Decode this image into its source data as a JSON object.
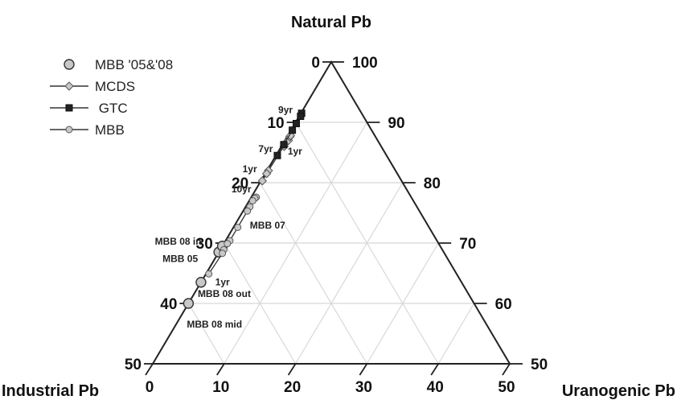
{
  "chart_data": {
    "type": "scatter",
    "subtype": "ternary",
    "vertices": {
      "top": "Natural Pb",
      "left": "Industrial Pb",
      "right": "Uranogenic Pb"
    },
    "ticks": {
      "left_edge": [
        "0",
        "10",
        "20",
        "30",
        "40",
        "50"
      ],
      "right_edge": [
        "100",
        "90",
        "80",
        "70",
        "60",
        "50"
      ],
      "bottom_edge": [
        "0",
        "10",
        "20",
        "30",
        "40",
        "50"
      ]
    },
    "axis_ranges": {
      "industrial": [
        0,
        50
      ],
      "natural": [
        50,
        100
      ],
      "uranogenic": [
        0,
        50
      ]
    },
    "grid": true,
    "legend_position": "top-left",
    "legend": [
      {
        "label": "MBB '05&'08",
        "marker": "circle-large",
        "line": false,
        "color": "#c8c8c8"
      },
      {
        "label": "MCDS",
        "marker": "diamond",
        "line": true,
        "color": "#c8c8c8"
      },
      {
        "label": "GTC",
        "marker": "square",
        "line": true,
        "color": "#222222"
      },
      {
        "label": "MBB",
        "marker": "circle",
        "line": true,
        "color": "#c8c8c8"
      }
    ],
    "series": [
      {
        "name": "MBB '05&'08",
        "marker": "circle-large",
        "color": "#c8c8c8",
        "points": [
          {
            "industrial": 31.5,
            "natural": 68.5,
            "uranogenic": 0.0
          },
          {
            "industrial": 30.5,
            "natural": 69.5,
            "uranogenic": 0.0
          },
          {
            "industrial": 36.5,
            "natural": 63.5,
            "uranogenic": 0.0
          },
          {
            "industrial": 40.0,
            "natural": 60.0,
            "uranogenic": 0.0
          }
        ]
      },
      {
        "name": "MCDS",
        "marker": "diamond",
        "color": "#c8c8c8",
        "points": [
          {
            "industrial": 13.6,
            "natural": 86.0,
            "uranogenic": 0.4
          },
          {
            "industrial": 13.2,
            "natural": 86.5,
            "uranogenic": 0.3
          },
          {
            "industrial": 12.5,
            "natural": 87.0,
            "uranogenic": 0.5
          },
          {
            "industrial": 12.0,
            "natural": 87.6,
            "uranogenic": 0.4
          },
          {
            "industrial": 11.8,
            "natural": 87.8,
            "uranogenic": 0.4
          },
          {
            "industrial": 17.8,
            "natural": 82.0,
            "uranogenic": 0.2
          },
          {
            "industrial": 18.3,
            "natural": 81.5,
            "uranogenic": 0.2
          },
          {
            "industrial": 19.5,
            "natural": 80.3,
            "uranogenic": 0.2
          }
        ]
      },
      {
        "name": "GTC",
        "marker": "square",
        "color": "#222222",
        "points": [
          {
            "industrial": 8.4,
            "natural": 91.5,
            "uranogenic": 0.1
          },
          {
            "industrial": 8.8,
            "natural": 91.0,
            "uranogenic": 0.2
          },
          {
            "industrial": 10.0,
            "natural": 89.8,
            "uranogenic": 0.2
          },
          {
            "industrial": 11.1,
            "natural": 88.7,
            "uranogenic": 0.2
          },
          {
            "industrial": 13.5,
            "natural": 86.3,
            "uranogenic": 0.2
          },
          {
            "industrial": 15.3,
            "natural": 84.5,
            "uranogenic": 0.2
          }
        ]
      },
      {
        "name": "MBB",
        "marker": "circle",
        "color": "#c8c8c8",
        "points": [
          {
            "industrial": 21.7,
            "natural": 77.6,
            "uranogenic": 0.7
          },
          {
            "industrial": 22.0,
            "natural": 77.4,
            "uranogenic": 0.6
          },
          {
            "industrial": 22.5,
            "natural": 77.0,
            "uranogenic": 0.5
          },
          {
            "industrial": 23.4,
            "natural": 76.0,
            "uranogenic": 0.6
          },
          {
            "industrial": 24.1,
            "natural": 75.3,
            "uranogenic": 0.6
          },
          {
            "industrial": 26.8,
            "natural": 72.6,
            "uranogenic": 0.6
          },
          {
            "industrial": 29.0,
            "natural": 70.4,
            "uranogenic": 0.6
          },
          {
            "industrial": 29.6,
            "natural": 69.9,
            "uranogenic": 0.5
          },
          {
            "industrial": 30.6,
            "natural": 68.9,
            "uranogenic": 0.5
          },
          {
            "industrial": 31.1,
            "natural": 68.3,
            "uranogenic": 0.6
          },
          {
            "industrial": 34.7,
            "natural": 64.9,
            "uranogenic": 0.4
          }
        ]
      }
    ],
    "annotations": [
      {
        "text": "9yr",
        "industrial": 9.0,
        "natural": 91.0,
        "uranogenic": 0.0,
        "dx": -26,
        "dy": -4
      },
      {
        "text": "1yr",
        "industrial": 14.0,
        "natural": 86.0,
        "uranogenic": 0.0,
        "dx": 8,
        "dy": 10
      },
      {
        "text": "7yr",
        "industrial": 14.3,
        "natural": 85.5,
        "uranogenic": 0.2,
        "dx": -28,
        "dy": 3
      },
      {
        "text": "1yr",
        "industrial": 18.3,
        "natural": 81.5,
        "uranogenic": 0.2,
        "dx": -30,
        "dy": -2
      },
      {
        "text": "10yr",
        "industrial": 21.8,
        "natural": 77.6,
        "uranogenic": 0.6,
        "dx": -30,
        "dy": -6
      },
      {
        "text": "MBB 07",
        "industrial": 27.0,
        "natural": 72.4,
        "uranogenic": 0.6,
        "dx": 16,
        "dy": 0
      },
      {
        "text": "MBB 08 in",
        "industrial": 30.5,
        "natural": 69.5,
        "uranogenic": 0.0,
        "dx": -84,
        "dy": -2
      },
      {
        "text": "MBB 05",
        "industrial": 31.5,
        "natural": 68.5,
        "uranogenic": 0.0,
        "dx": -70,
        "dy": 12
      },
      {
        "text": "1yr",
        "industrial": 34.7,
        "natural": 64.9,
        "uranogenic": 0.4,
        "dx": 8,
        "dy": 14
      },
      {
        "text": "MBB 08 out",
        "industrial": 36.5,
        "natural": 63.5,
        "uranogenic": 0.0,
        "dx": -4,
        "dy": 18
      },
      {
        "text": "MBB 08 mid",
        "industrial": 40.0,
        "natural": 60.0,
        "uranogenic": 0.0,
        "dx": -2,
        "dy": 30
      }
    ]
  }
}
